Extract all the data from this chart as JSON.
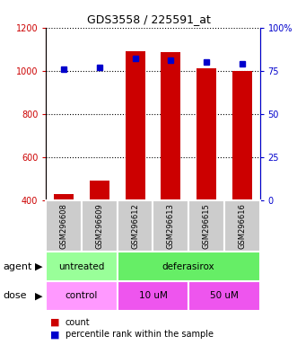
{
  "title": "GDS3558 / 225591_at",
  "samples": [
    "GSM296608",
    "GSM296609",
    "GSM296612",
    "GSM296613",
    "GSM296615",
    "GSM296616"
  ],
  "counts": [
    430,
    490,
    1090,
    1085,
    1010,
    1000
  ],
  "percentile_ranks": [
    76,
    77,
    82,
    81,
    80,
    79
  ],
  "ylim_left": [
    400,
    1200
  ],
  "ylim_right": [
    0,
    100
  ],
  "yticks_left": [
    400,
    600,
    800,
    1000,
    1200
  ],
  "yticks_right": [
    0,
    25,
    50,
    75,
    100
  ],
  "ytick_right_labels": [
    "0",
    "25",
    "50",
    "75",
    "100%"
  ],
  "bar_color": "#cc0000",
  "dot_color": "#0000cc",
  "agent_label": "agent",
  "dose_label": "dose",
  "untreated_color": "#99ff99",
  "deferasirox_color": "#66ee66",
  "control_color": "#ff99ff",
  "dose10_color": "#ee55ee",
  "dose50_color": "#ee55ee",
  "legend_count_label": "count",
  "legend_pct_label": "percentile rank within the sample",
  "background_color": "#ffffff",
  "sample_box_color": "#cccccc",
  "bar_bottom": 400
}
